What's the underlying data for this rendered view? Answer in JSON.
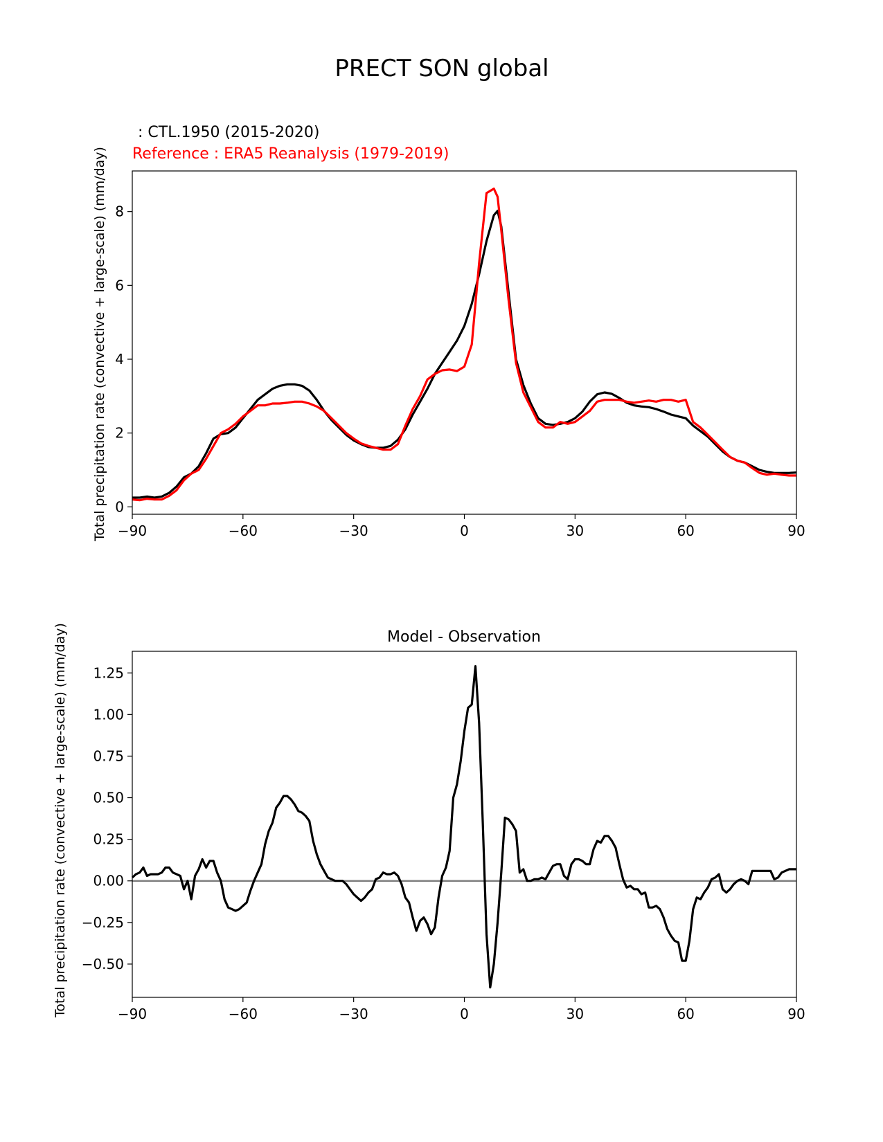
{
  "figure_title": "PRECT SON global",
  "chart_data": [
    {
      "type": "line",
      "test_label": " : CTL.1950 (2015-2020)",
      "ref_label": "Reference : ERA5 Reanalysis (1979-2019)",
      "title": "",
      "xlabel": "",
      "ylabel": "Total precipitation rate (convective + large-scale) (mm/day)",
      "xlim": [
        -90,
        90
      ],
      "ylim": [
        -0.2,
        9.1
      ],
      "xticks": [
        -90,
        -60,
        -30,
        0,
        30,
        60,
        90
      ],
      "yticks": [
        0,
        2,
        4,
        6,
        8
      ],
      "series": [
        {
          "name": "CTL.1950",
          "color": "#000000",
          "x": [
            -90,
            -88,
            -86,
            -84,
            -82,
            -80,
            -78,
            -76,
            -74,
            -72,
            -70,
            -68,
            -66,
            -64,
            -62,
            -60,
            -58,
            -56,
            -54,
            -52,
            -50,
            -48,
            -46,
            -44,
            -42,
            -40,
            -38,
            -36,
            -34,
            -32,
            -30,
            -28,
            -26,
            -24,
            -22,
            -20,
            -18,
            -16,
            -14,
            -12,
            -10,
            -8,
            -6,
            -4,
            -2,
            0,
            2,
            4,
            6,
            8,
            9,
            10,
            12,
            14,
            16,
            18,
            20,
            22,
            24,
            26,
            28,
            30,
            32,
            34,
            36,
            38,
            40,
            42,
            44,
            46,
            48,
            50,
            52,
            54,
            56,
            58,
            60,
            62,
            64,
            66,
            68,
            70,
            72,
            74,
            76,
            78,
            80,
            82,
            84,
            86,
            88,
            90
          ],
          "values": [
            0.25,
            0.25,
            0.28,
            0.25,
            0.28,
            0.38,
            0.55,
            0.8,
            0.9,
            1.1,
            1.45,
            1.85,
            1.97,
            2.0,
            2.15,
            2.4,
            2.65,
            2.9,
            3.05,
            3.2,
            3.28,
            3.32,
            3.32,
            3.28,
            3.15,
            2.9,
            2.6,
            2.35,
            2.15,
            1.95,
            1.8,
            1.7,
            1.62,
            1.6,
            1.6,
            1.65,
            1.82,
            2.1,
            2.5,
            2.85,
            3.2,
            3.6,
            3.9,
            4.2,
            4.5,
            4.9,
            5.5,
            6.3,
            7.2,
            7.9,
            8.02,
            7.6,
            5.8,
            4.0,
            3.3,
            2.8,
            2.4,
            2.25,
            2.22,
            2.25,
            2.3,
            2.4,
            2.58,
            2.85,
            3.05,
            3.1,
            3.06,
            2.95,
            2.82,
            2.75,
            2.72,
            2.7,
            2.65,
            2.58,
            2.5,
            2.45,
            2.4,
            2.2,
            2.05,
            1.9,
            1.7,
            1.5,
            1.35,
            1.25,
            1.2,
            1.1,
            1.0,
            0.95,
            0.92,
            0.92,
            0.92,
            0.93
          ]
        },
        {
          "name": "ERA5 Reanalysis",
          "color": "#ff0000",
          "x": [
            -90,
            -88,
            -86,
            -84,
            -82,
            -80,
            -78,
            -76,
            -74,
            -72,
            -70,
            -68,
            -66,
            -64,
            -62,
            -60,
            -58,
            -56,
            -54,
            -52,
            -50,
            -48,
            -46,
            -44,
            -42,
            -40,
            -38,
            -36,
            -34,
            -32,
            -30,
            -28,
            -26,
            -24,
            -22,
            -20,
            -18,
            -16,
            -14,
            -12,
            -10,
            -8,
            -6,
            -4,
            -2,
            0,
            2,
            4,
            6,
            8,
            9,
            10,
            12,
            14,
            16,
            18,
            20,
            22,
            24,
            26,
            28,
            30,
            32,
            34,
            36,
            38,
            40,
            42,
            44,
            46,
            48,
            50,
            52,
            54,
            56,
            58,
            60,
            62,
            64,
            66,
            68,
            70,
            72,
            74,
            76,
            78,
            80,
            82,
            84,
            86,
            88,
            90
          ],
          "values": [
            0.2,
            0.18,
            0.22,
            0.2,
            0.2,
            0.3,
            0.45,
            0.72,
            0.9,
            1.0,
            1.3,
            1.65,
            2.0,
            2.1,
            2.25,
            2.45,
            2.6,
            2.75,
            2.75,
            2.8,
            2.8,
            2.82,
            2.85,
            2.85,
            2.8,
            2.72,
            2.6,
            2.4,
            2.2,
            2.0,
            1.85,
            1.72,
            1.65,
            1.6,
            1.55,
            1.55,
            1.7,
            2.2,
            2.65,
            3.0,
            3.45,
            3.6,
            3.7,
            3.72,
            3.68,
            3.8,
            4.4,
            6.6,
            8.5,
            8.62,
            8.4,
            7.5,
            5.6,
            3.9,
            3.1,
            2.7,
            2.3,
            2.15,
            2.15,
            2.3,
            2.25,
            2.3,
            2.45,
            2.6,
            2.85,
            2.9,
            2.9,
            2.9,
            2.85,
            2.82,
            2.85,
            2.88,
            2.85,
            2.9,
            2.9,
            2.85,
            2.9,
            2.3,
            2.15,
            1.95,
            1.75,
            1.55,
            1.35,
            1.25,
            1.2,
            1.05,
            0.92,
            0.87,
            0.9,
            0.87,
            0.85,
            0.85
          ]
        }
      ]
    },
    {
      "type": "line",
      "title": "Model - Observation",
      "xlabel": "",
      "ylabel": "Total precipitation rate (convective + large-scale) (mm/day)",
      "xlim": [
        -90,
        90
      ],
      "ylim": [
        -0.7,
        1.38
      ],
      "xticks": [
        -90,
        -60,
        -30,
        0,
        30,
        60,
        90
      ],
      "yticks": [
        -0.5,
        -0.25,
        0.0,
        0.25,
        0.5,
        0.75,
        1.0,
        1.25
      ],
      "ytick_labels": [
        "−0.50",
        "−0.25",
        "0.00",
        "0.25",
        "0.50",
        "0.75",
        "1.00",
        "1.25"
      ],
      "zero_line_color": "#808080",
      "series": [
        {
          "name": "Model - Observation",
          "color": "#000000",
          "x": [
            -90,
            -89,
            -88,
            -87,
            -86,
            -85,
            -84,
            -83,
            -82,
            -81,
            -80,
            -79,
            -78,
            -77,
            -76,
            -75,
            -74,
            -73,
            -72,
            -71,
            -70,
            -69,
            -68,
            -67,
            -66,
            -65,
            -64,
            -63,
            -62,
            -61,
            -60,
            -59,
            -58,
            -57,
            -56,
            -55,
            -54,
            -53,
            -52,
            -51,
            -50,
            -49,
            -48,
            -47,
            -46,
            -45,
            -44,
            -43,
            -42,
            -41,
            -40,
            -39,
            -38,
            -37,
            -36,
            -35,
            -34,
            -33,
            -32,
            -31,
            -30,
            -29,
            -28,
            -27,
            -26,
            -25,
            -24,
            -23,
            -22,
            -21,
            -20,
            -19,
            -18,
            -17,
            -16,
            -15,
            -14,
            -13,
            -12,
            -11,
            -10,
            -9,
            -8,
            -7,
            -6,
            -5,
            -4,
            -3,
            -2,
            -1,
            0,
            1,
            2,
            3,
            4,
            5,
            6,
            7,
            8,
            9,
            10,
            11,
            12,
            13,
            14,
            15,
            16,
            17,
            18,
            19,
            20,
            21,
            22,
            23,
            24,
            25,
            26,
            27,
            28,
            29,
            30,
            31,
            32,
            33,
            34,
            35,
            36,
            37,
            38,
            39,
            40,
            41,
            42,
            43,
            44,
            45,
            46,
            47,
            48,
            49,
            50,
            51,
            52,
            53,
            54,
            55,
            56,
            57,
            58,
            59,
            60,
            61,
            62,
            63,
            64,
            65,
            66,
            67,
            68,
            69,
            70,
            71,
            72,
            73,
            74,
            75,
            76,
            77,
            78,
            79,
            80,
            81,
            82,
            83,
            84,
            85,
            86,
            87,
            88,
            89,
            90
          ],
          "values": [
            0.02,
            0.04,
            0.05,
            0.08,
            0.03,
            0.04,
            0.04,
            0.04,
            0.05,
            0.08,
            0.08,
            0.05,
            0.04,
            0.03,
            -0.05,
            0.0,
            -0.11,
            0.03,
            0.07,
            0.13,
            0.08,
            0.12,
            0.12,
            0.05,
            0.0,
            -0.11,
            -0.16,
            -0.17,
            -0.18,
            -0.17,
            -0.15,
            -0.13,
            -0.06,
            0.0,
            0.05,
            0.1,
            0.22,
            0.3,
            0.35,
            0.44,
            0.47,
            0.51,
            0.51,
            0.49,
            0.46,
            0.42,
            0.41,
            0.39,
            0.36,
            0.24,
            0.16,
            0.1,
            0.06,
            0.02,
            0.01,
            0.0,
            0.0,
            0.0,
            -0.02,
            -0.05,
            -0.08,
            -0.1,
            -0.12,
            -0.1,
            -0.07,
            -0.05,
            0.01,
            0.02,
            0.05,
            0.04,
            0.04,
            0.05,
            0.03,
            -0.02,
            -0.1,
            -0.13,
            -0.22,
            -0.3,
            -0.24,
            -0.22,
            -0.26,
            -0.32,
            -0.28,
            -0.1,
            0.03,
            0.08,
            0.18,
            0.5,
            0.58,
            0.72,
            0.9,
            1.04,
            1.06,
            1.29,
            0.95,
            0.35,
            -0.32,
            -0.64,
            -0.5,
            -0.25,
            0.05,
            0.38,
            0.37,
            0.34,
            0.3,
            0.05,
            0.07,
            0.0,
            0.0,
            0.01,
            0.01,
            0.02,
            0.01,
            0.05,
            0.09,
            0.1,
            0.1,
            0.03,
            0.01,
            0.1,
            0.13,
            0.13,
            0.12,
            0.1,
            0.1,
            0.19,
            0.24,
            0.23,
            0.27,
            0.27,
            0.24,
            0.2,
            0.1,
            0.01,
            -0.04,
            -0.03,
            -0.05,
            -0.05,
            -0.08,
            -0.07,
            -0.16,
            -0.16,
            -0.15,
            -0.17,
            -0.22,
            -0.29,
            -0.33,
            -0.36,
            -0.37,
            -0.48,
            -0.48,
            -0.36,
            -0.17,
            -0.1,
            -0.11,
            -0.07,
            -0.04,
            0.01,
            0.02,
            0.04,
            -0.05,
            -0.07,
            -0.05,
            -0.02,
            0.0,
            0.01,
            0.0,
            -0.02,
            0.06,
            0.06,
            0.06,
            0.06,
            0.06,
            0.06,
            0.01,
            0.02,
            0.05,
            0.06,
            0.07,
            0.07,
            0.07
          ]
        }
      ]
    }
  ]
}
